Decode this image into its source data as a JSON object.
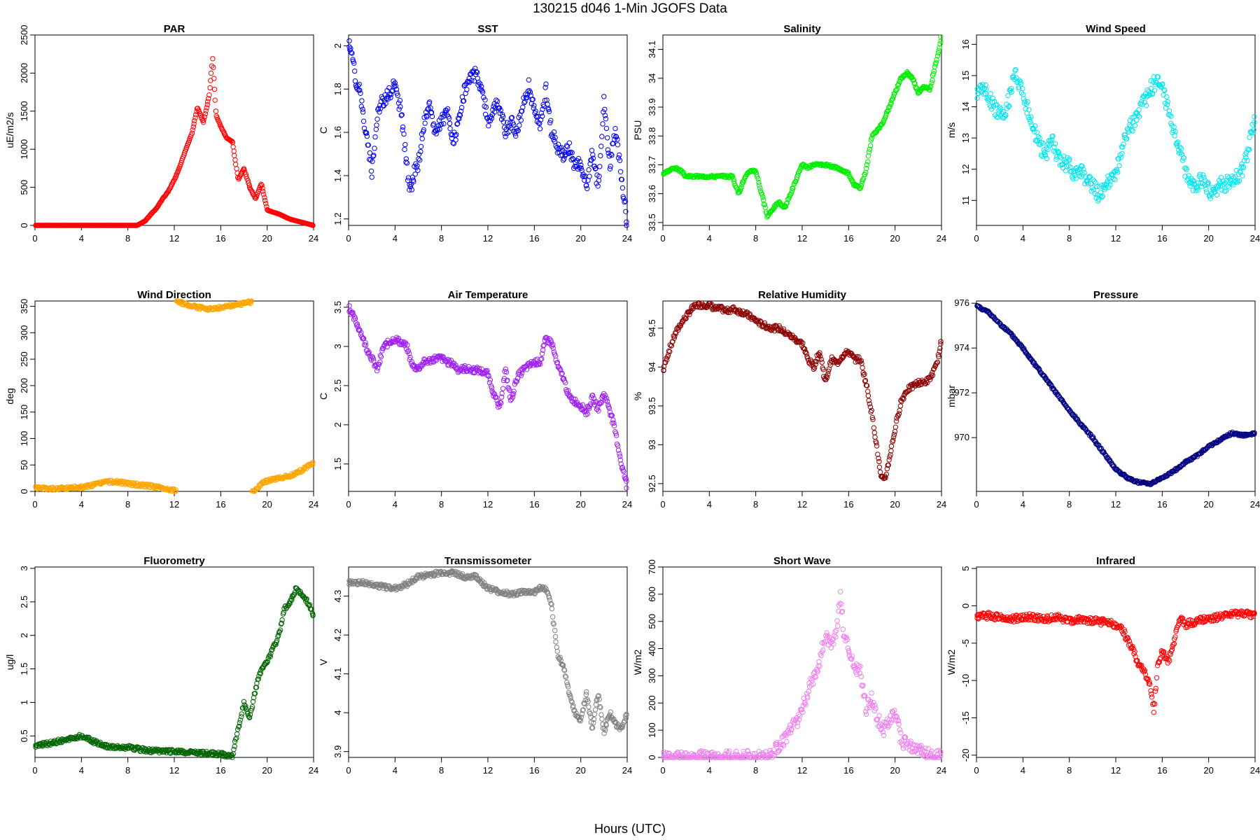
{
  "figure": {
    "title": "130215   d046   1-Min  JGOFS Data",
    "xlabel": "Hours (UTC)"
  },
  "chart_data": [
    {
      "type": "scatter",
      "title": "PAR",
      "ylabel": "uE/m2/s",
      "color": "#ff0000",
      "xlim": [
        0,
        24
      ],
      "ylim": [
        0,
        2500
      ],
      "xticks": [
        0,
        4,
        8,
        12,
        16,
        20,
        24
      ],
      "yticks": [
        0,
        500,
        1000,
        1500,
        2000,
        2500
      ],
      "y_rotated": true,
      "jitter": 0.08,
      "x": [
        0,
        8.8,
        9.5,
        10,
        10.5,
        11,
        11.5,
        12,
        12.5,
        13,
        13.5,
        14,
        14.5,
        15,
        15.3,
        15.6,
        16,
        16.5,
        17,
        17.5,
        18,
        18.5,
        19,
        19.5,
        20,
        21,
        22,
        23,
        24
      ],
      "y": [
        0,
        0,
        60,
        150,
        230,
        350,
        450,
        600,
        780,
        1000,
        1200,
        1550,
        1350,
        1700,
        2200,
        1450,
        1300,
        1150,
        1100,
        600,
        750,
        500,
        350,
        550,
        200,
        150,
        80,
        40,
        0
      ]
    },
    {
      "type": "scatter",
      "title": "SST",
      "ylabel": "C",
      "color": "#0000ee",
      "xlim": [
        0,
        24
      ],
      "ylim": [
        1.17,
        2.05
      ],
      "xticks": [
        0,
        4,
        8,
        12,
        16,
        20,
        24
      ],
      "yticks": [
        1.2,
        1.4,
        1.6,
        1.8,
        2.0
      ],
      "y_rotated": true,
      "jitter": 0.03,
      "x": [
        0,
        0.3,
        0.6,
        1,
        1.5,
        2,
        2.5,
        3,
        3.5,
        4,
        4.5,
        5,
        5.3,
        5.7,
        6,
        6.5,
        7,
        7.5,
        8,
        8.5,
        9,
        9.5,
        10,
        10.5,
        11,
        11.5,
        12,
        12.5,
        13,
        13.5,
        14,
        14.5,
        15,
        15.5,
        16,
        16.5,
        17,
        17.5,
        18,
        18.5,
        19,
        19.5,
        20,
        20.5,
        21,
        21.5,
        22,
        22.5,
        23,
        23.5,
        24
      ],
      "y": [
        2.03,
        1.95,
        1.85,
        1.78,
        1.6,
        1.42,
        1.7,
        1.75,
        1.78,
        1.82,
        1.7,
        1.45,
        1.32,
        1.42,
        1.45,
        1.65,
        1.72,
        1.6,
        1.65,
        1.7,
        1.55,
        1.65,
        1.8,
        1.85,
        1.87,
        1.8,
        1.65,
        1.72,
        1.72,
        1.6,
        1.65,
        1.6,
        1.72,
        1.82,
        1.7,
        1.62,
        1.8,
        1.6,
        1.53,
        1.5,
        1.53,
        1.45,
        1.45,
        1.35,
        1.5,
        1.35,
        1.75,
        1.45,
        1.6,
        1.4,
        1.18
      ]
    },
    {
      "type": "scatter",
      "title": "Salinity",
      "ylabel": "PSU",
      "color": "#00ee00",
      "xlim": [
        0,
        24
      ],
      "ylim": [
        33.49,
        34.15
      ],
      "xticks": [
        0,
        4,
        8,
        12,
        16,
        20,
        24
      ],
      "yticks": [
        33.5,
        33.6,
        33.7,
        33.8,
        33.9,
        34.0,
        34.1
      ],
      "y_rotated": true,
      "jitter": 0.004,
      "x": [
        0,
        0.5,
        1,
        1.5,
        2,
        3,
        4,
        5,
        6,
        6.5,
        7,
        7.5,
        8,
        8.5,
        9,
        9.5,
        10,
        10.5,
        11,
        11.5,
        12,
        12.5,
        13,
        14,
        15,
        16,
        16.5,
        17,
        17.5,
        18,
        18.5,
        19,
        19.5,
        20,
        20.5,
        21,
        21.5,
        22,
        22.5,
        23,
        23.5,
        24
      ],
      "y": [
        33.67,
        33.68,
        33.69,
        33.68,
        33.66,
        33.66,
        33.66,
        33.66,
        33.66,
        33.6,
        33.65,
        33.68,
        33.68,
        33.6,
        33.52,
        33.55,
        33.57,
        33.55,
        33.6,
        33.65,
        33.7,
        33.69,
        33.7,
        33.7,
        33.69,
        33.67,
        33.63,
        33.62,
        33.68,
        33.8,
        33.82,
        33.85,
        33.9,
        33.95,
        34.0,
        34.02,
        34.0,
        33.95,
        33.97,
        33.96,
        34.05,
        34.14
      ]
    },
    {
      "type": "scatter",
      "title": "Wind Speed",
      "ylabel": "m/s",
      "color": "#00e5ee",
      "xlim": [
        0,
        24
      ],
      "ylim": [
        10.2,
        16.3
      ],
      "xticks": [
        0,
        4,
        8,
        12,
        16,
        20,
        24
      ],
      "yticks": [
        11,
        12,
        13,
        14,
        15,
        16
      ],
      "y_rotated": true,
      "jitter": 0.25,
      "x": [
        0,
        0.5,
        1,
        1.5,
        2,
        2.5,
        3,
        3.3,
        3.7,
        4,
        4.5,
        5,
        5.5,
        6,
        6.5,
        7,
        7.5,
        8,
        8.5,
        9,
        9.5,
        10,
        10.5,
        11,
        11.5,
        12,
        12.5,
        13,
        13.5,
        14,
        14.5,
        15,
        15.5,
        16,
        16.5,
        17,
        17.5,
        18,
        18.5,
        19,
        19.5,
        20,
        20.5,
        21,
        21.5,
        22,
        22.5,
        23,
        23.5,
        24
      ],
      "y": [
        14.5,
        14.6,
        14.4,
        14.0,
        13.8,
        13.9,
        14.5,
        15.2,
        14.7,
        14.4,
        13.8,
        13.2,
        12.7,
        12.5,
        12.9,
        12.4,
        12.2,
        12.1,
        11.8,
        12.0,
        11.6,
        11.5,
        11.2,
        11.4,
        11.6,
        11.8,
        12.6,
        13.2,
        13.5,
        13.8,
        14.2,
        14.6,
        14.8,
        14.6,
        14.0,
        13.2,
        12.6,
        12.0,
        11.6,
        11.5,
        11.7,
        11.3,
        11.2,
        11.6,
        11.5,
        11.7,
        11.8,
        12.0,
        12.8,
        13.6
      ]
    },
    {
      "type": "scatter",
      "title": "Wind Direction",
      "ylabel": "deg",
      "color": "#ffa500",
      "xlim": [
        0,
        24
      ],
      "ylim": [
        0,
        360
      ],
      "xticks": [
        0,
        4,
        8,
        12,
        16,
        20,
        24
      ],
      "yticks": [
        0,
        50,
        100,
        150,
        200,
        250,
        300,
        350
      ],
      "y_rotated": true,
      "jitter": 3,
      "x": [
        0,
        1,
        2,
        3,
        4,
        5,
        6,
        7,
        8,
        9,
        10,
        11,
        12,
        12.3,
        13,
        14,
        15,
        16,
        17,
        18,
        18.4,
        19,
        19.5,
        20,
        21,
        22,
        23,
        24
      ],
      "y": [
        7,
        5,
        5,
        7,
        8,
        12,
        18,
        18,
        15,
        12,
        10,
        6,
        2,
        358,
        354,
        348,
        345,
        348,
        352,
        355,
        358,
        2,
        15,
        20,
        25,
        30,
        40,
        55
      ]
    },
    {
      "type": "scatter",
      "title": "Air Temperature",
      "ylabel": "C",
      "color": "#a020f0",
      "xlim": [
        0,
        24
      ],
      "ylim": [
        1.15,
        3.58
      ],
      "xticks": [
        0,
        4,
        8,
        12,
        16,
        20,
        24
      ],
      "yticks": [
        1.5,
        2.0,
        2.5,
        3.0,
        3.5
      ],
      "y_rotated": true,
      "jitter": 0.04,
      "x": [
        0,
        0.5,
        1,
        1.5,
        2,
        2.5,
        3,
        3.5,
        4,
        4.5,
        5,
        5.5,
        6,
        6.5,
        7,
        7.5,
        8,
        8.5,
        9,
        9.5,
        10,
        10.5,
        11,
        11.5,
        12,
        12.5,
        13,
        13.5,
        14,
        14.5,
        15,
        15.5,
        16,
        16.5,
        17,
        17.5,
        18,
        18.5,
        19,
        19.5,
        20,
        20.5,
        21,
        21.5,
        22,
        22.5,
        23,
        23.5,
        24
      ],
      "y": [
        3.5,
        3.35,
        3.2,
        3.0,
        2.85,
        2.7,
        3.0,
        3.05,
        3.1,
        3.05,
        3.0,
        2.75,
        2.72,
        2.8,
        2.82,
        2.85,
        2.85,
        2.8,
        2.78,
        2.7,
        2.72,
        2.7,
        2.7,
        2.68,
        2.65,
        2.4,
        2.2,
        2.7,
        2.3,
        2.6,
        2.7,
        2.75,
        2.8,
        2.8,
        3.1,
        3.05,
        2.75,
        2.6,
        2.35,
        2.3,
        2.25,
        2.15,
        2.35,
        2.2,
        2.4,
        2.2,
        1.9,
        1.5,
        1.22
      ]
    },
    {
      "type": "scatter",
      "title": "Relative Humidity",
      "ylabel": "%",
      "color": "#8b0000",
      "xlim": [
        0,
        24
      ],
      "ylim": [
        92.4,
        94.85
      ],
      "xticks": [
        0,
        4,
        8,
        12,
        16,
        20,
        24
      ],
      "yticks": [
        92.5,
        93.0,
        93.5,
        94.0,
        94.5
      ],
      "y_rotated": true,
      "jitter": 0.035,
      "x": [
        0,
        0.5,
        1,
        1.5,
        2,
        2.5,
        3,
        3.5,
        4,
        4.5,
        5,
        5.5,
        6,
        6.5,
        7,
        7.5,
        8,
        8.5,
        9,
        9.5,
        10,
        10.5,
        11,
        11.5,
        12,
        12.5,
        13,
        13.5,
        14,
        14.5,
        15,
        15.5,
        16,
        16.5,
        17,
        17.5,
        18,
        18.5,
        18.8,
        19.2,
        19.6,
        20,
        20.5,
        21,
        21.5,
        22,
        22.5,
        23,
        23.5,
        24
      ],
      "y": [
        93.95,
        94.2,
        94.4,
        94.55,
        94.65,
        94.75,
        94.8,
        94.8,
        94.8,
        94.75,
        94.75,
        94.72,
        94.75,
        94.72,
        94.7,
        94.65,
        94.6,
        94.55,
        94.52,
        94.5,
        94.5,
        94.45,
        94.4,
        94.35,
        94.3,
        94.1,
        94.0,
        94.2,
        93.8,
        94.1,
        94.05,
        94.15,
        94.2,
        94.1,
        94.1,
        93.8,
        93.4,
        92.9,
        92.55,
        92.6,
        92.9,
        93.2,
        93.55,
        93.7,
        93.75,
        93.8,
        93.8,
        93.85,
        94.0,
        94.3
      ]
    },
    {
      "type": "scatter",
      "title": "Pressure",
      "ylabel": "mbar",
      "color": "#000080",
      "xlim": [
        0,
        24
      ],
      "ylim": [
        967.6,
        976.1
      ],
      "xticks": [
        0,
        4,
        8,
        12,
        16,
        20,
        24
      ],
      "yticks": [
        970,
        972,
        974,
        976
      ],
      "y_rotated": false,
      "jitter": 0.05,
      "x": [
        0,
        1,
        2,
        3,
        4,
        5,
        6,
        7,
        8,
        9,
        10,
        11,
        12,
        13,
        14,
        15,
        16,
        17,
        18,
        19,
        20,
        21,
        22,
        23,
        24
      ],
      "y": [
        975.9,
        975.6,
        975.1,
        974.6,
        974.0,
        973.3,
        972.6,
        971.9,
        971.2,
        970.6,
        970.0,
        969.3,
        968.6,
        968.2,
        968.0,
        967.95,
        968.2,
        968.5,
        968.9,
        969.2,
        969.6,
        969.9,
        970.2,
        970.1,
        970.2
      ]
    },
    {
      "type": "scatter",
      "title": "Fluorometry",
      "ylabel": "ug/l",
      "color": "#006400",
      "xlim": [
        0,
        24
      ],
      "ylim": [
        0.18,
        3.02
      ],
      "xticks": [
        0,
        4,
        8,
        12,
        16,
        20,
        24
      ],
      "yticks": [
        0.5,
        1.0,
        1.5,
        2.0,
        2.5,
        3.0
      ],
      "y_rotated": true,
      "jitter": 0.03,
      "x": [
        0,
        1,
        2,
        3,
        4,
        5,
        6,
        7,
        8,
        9,
        10,
        11,
        12,
        13,
        14,
        15,
        16,
        17,
        17.5,
        18,
        18.5,
        19,
        19.5,
        20,
        20.5,
        21,
        21.5,
        22,
        22.5,
        23,
        23.5,
        24
      ],
      "y": [
        0.35,
        0.38,
        0.42,
        0.45,
        0.5,
        0.42,
        0.35,
        0.33,
        0.33,
        0.3,
        0.28,
        0.27,
        0.27,
        0.25,
        0.25,
        0.24,
        0.23,
        0.2,
        0.6,
        1.0,
        0.75,
        1.2,
        1.5,
        1.6,
        1.8,
        2.0,
        2.4,
        2.5,
        2.7,
        2.6,
        2.5,
        2.3
      ]
    },
    {
      "type": "scatter",
      "title": "Transmissometer",
      "ylabel": "V",
      "color": "#808080",
      "xlim": [
        0,
        24
      ],
      "ylim": [
        3.885,
        4.375
      ],
      "xticks": [
        0,
        4,
        8,
        12,
        16,
        20,
        24
      ],
      "yticks": [
        3.9,
        4.0,
        4.1,
        4.2,
        4.3
      ],
      "y_rotated": true,
      "jitter": 0.006,
      "x": [
        0,
        1,
        2,
        3,
        4,
        5,
        6,
        7,
        8,
        9,
        10,
        11,
        12,
        13,
        14,
        15,
        16,
        16.5,
        17,
        17.5,
        18,
        18.5,
        19,
        19.5,
        20,
        20.5,
        21,
        21.5,
        22,
        22.5,
        23,
        23.5,
        24
      ],
      "y": [
        4.335,
        4.335,
        4.33,
        4.325,
        4.32,
        4.33,
        4.35,
        4.355,
        4.36,
        4.36,
        4.35,
        4.35,
        4.32,
        4.31,
        4.305,
        4.31,
        4.31,
        4.32,
        4.32,
        4.27,
        4.15,
        4.12,
        4.05,
        4.0,
        3.98,
        4.05,
        3.96,
        4.05,
        3.95,
        4.0,
        3.97,
        3.96,
        4.0
      ]
    },
    {
      "type": "scatter",
      "title": "Short Wave",
      "ylabel": "W/m2",
      "color": "#ee82ee",
      "xlim": [
        0,
        24
      ],
      "ylim": [
        0,
        700
      ],
      "xticks": [
        0,
        4,
        8,
        12,
        16,
        20,
        24
      ],
      "yticks": [
        0,
        100,
        200,
        300,
        400,
        500,
        600,
        700
      ],
      "y_rotated": true,
      "jitter": 25,
      "x": [
        0,
        4,
        8,
        8.8,
        9.5,
        10,
        10.5,
        11,
        11.5,
        12,
        12.5,
        13,
        13.5,
        14,
        14.5,
        15,
        15.3,
        15.6,
        16,
        16.5,
        17,
        17.5,
        18,
        18.5,
        19,
        19.5,
        20,
        20.5,
        21,
        22,
        23,
        24
      ],
      "y": [
        0,
        0,
        0,
        0,
        20,
        45,
        70,
        100,
        130,
        180,
        240,
        300,
        350,
        450,
        400,
        480,
        600,
        450,
        400,
        330,
        320,
        180,
        220,
        140,
        100,
        130,
        170,
        70,
        45,
        25,
        10,
        0
      ]
    },
    {
      "type": "scatter",
      "title": "Infrared",
      "ylabel": "W/m2",
      "color": "#ff0000",
      "xlim": [
        0,
        24
      ],
      "ylim": [
        -20.3,
        5.2
      ],
      "xticks": [
        0,
        4,
        8,
        12,
        16,
        20,
        24
      ],
      "yticks": [
        -20,
        -15,
        -10,
        -5,
        0,
        5
      ],
      "y_rotated": true,
      "jitter": 0.45,
      "x": [
        0,
        1,
        2,
        3,
        4,
        5,
        6,
        7,
        8,
        9,
        10,
        11,
        12,
        12.5,
        13,
        13.5,
        14,
        14.5,
        15,
        15.3,
        15.6,
        16,
        16.5,
        17,
        17.5,
        18,
        19,
        20,
        21,
        22,
        23,
        24
      ],
      "y": [
        -1.5,
        -1.3,
        -1.5,
        -1.8,
        -1.5,
        -1.5,
        -1.8,
        -1.5,
        -2.0,
        -1.8,
        -2.0,
        -2.2,
        -2.5,
        -3.0,
        -4.5,
        -6.0,
        -8.0,
        -9.0,
        -11.0,
        -14.0,
        -8.0,
        -6.0,
        -7.5,
        -5.0,
        -1.5,
        -2.5,
        -2.0,
        -1.8,
        -1.5,
        -1.2,
        -1.0,
        -1.2
      ]
    }
  ]
}
